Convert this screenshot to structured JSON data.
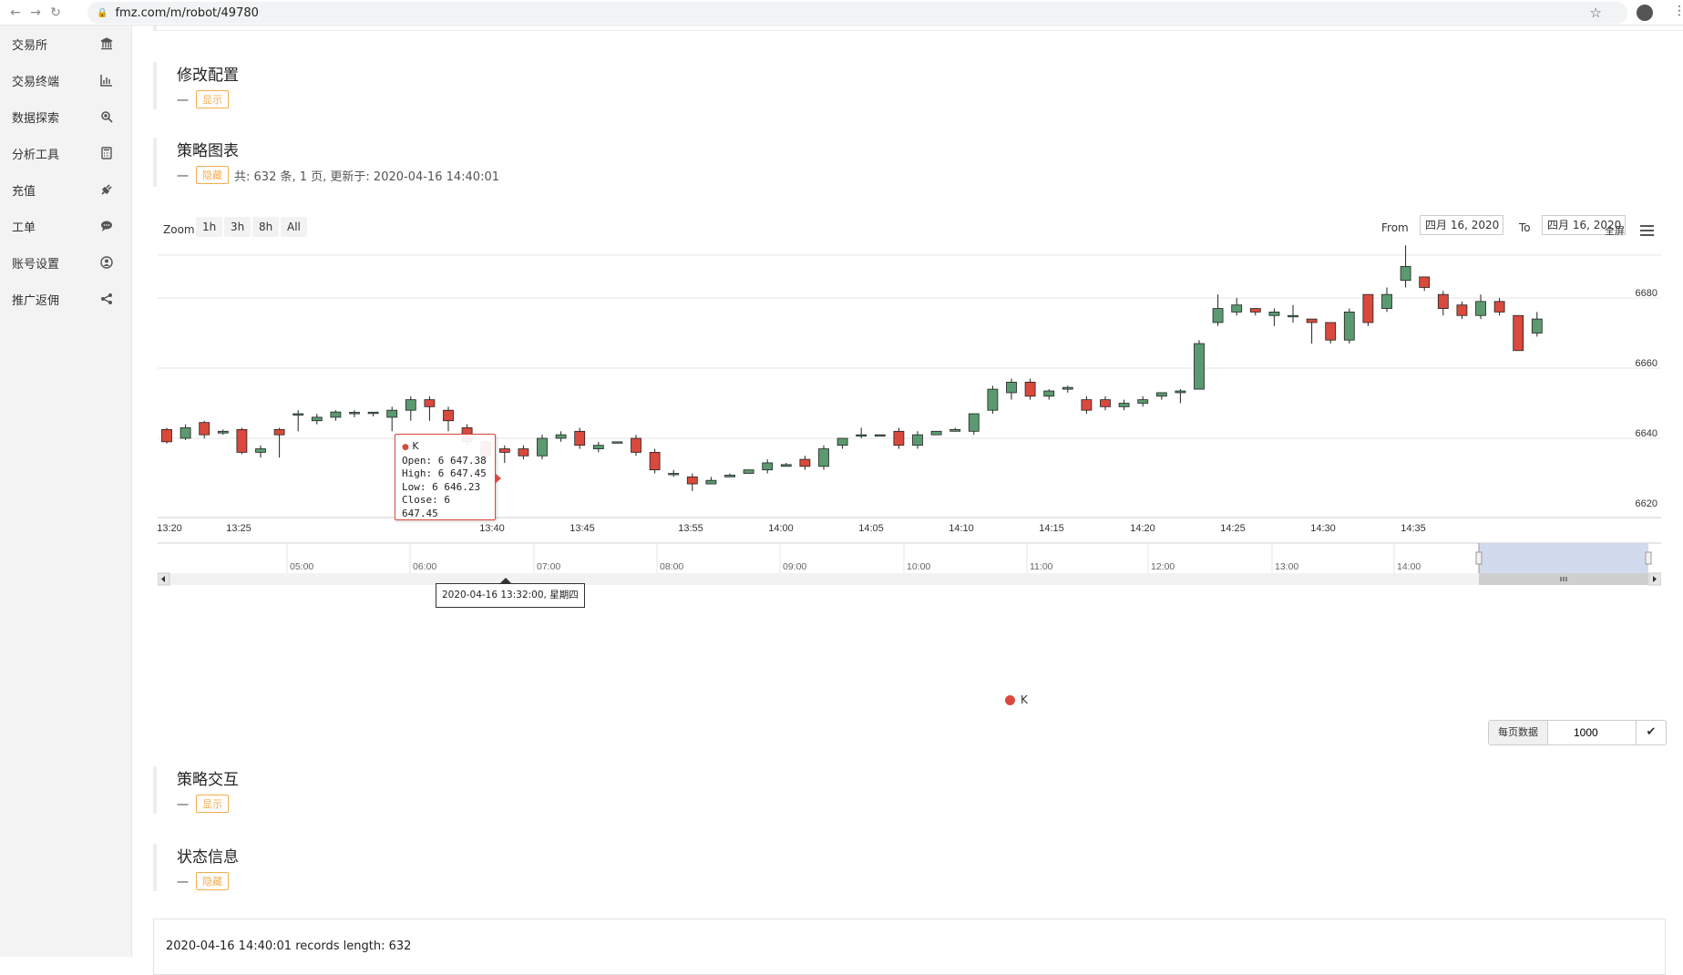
{
  "browser": {
    "url": "fmz.com/m/robot/49780",
    "back_icon": "arrow-left-icon",
    "forward_icon": "arrow-right-icon",
    "reload_icon": "reload-icon"
  },
  "sidebar": {
    "items": [
      {
        "label": "交易所",
        "icon": "bank-icon"
      },
      {
        "label": "交易终端",
        "icon": "bar-chart-icon"
      },
      {
        "label": "数据探索",
        "icon": "search-zoom-icon"
      },
      {
        "label": "分析工具",
        "icon": "calculator-icon"
      },
      {
        "label": "充值",
        "icon": "plug-icon"
      },
      {
        "label": "工单",
        "icon": "comment-icon"
      },
      {
        "label": "账号设置",
        "icon": "user-circle-icon"
      },
      {
        "label": "推广返佣",
        "icon": "share-icon"
      }
    ]
  },
  "sections": {
    "config": {
      "title": "修改配置",
      "dash": "一",
      "toggle": "显示"
    },
    "chart": {
      "title": "策略图表",
      "dash": "一",
      "toggle": "隐藏",
      "summary": "共: 632 条, 1 页, 更新于: 2020-04-16 14:40:01"
    },
    "interact": {
      "title": "策略交互",
      "dash": "一",
      "toggle": "显示"
    },
    "status": {
      "title": "状态信息",
      "dash": "一",
      "toggle": "隐藏"
    }
  },
  "range_selector": {
    "zoom_label": "Zoom",
    "buttons": [
      "1h",
      "3h",
      "8h",
      "All"
    ],
    "from_label": "From",
    "from_value": "四月 16, 2020",
    "to_label": "To",
    "to_value": "四月 16, 2020",
    "fullscreen_label": "全屏"
  },
  "tooltip": {
    "series": "K",
    "open": "Open: 6 647.38",
    "high": "High: 6 647.45",
    "low": "Low: 6 646.23",
    "close": "Close: 6 647.45"
  },
  "crosshair_label": "2020-04-16 13:32:00, 星期四",
  "legend": {
    "label": "K",
    "color": "#d9493c"
  },
  "chart_data": {
    "type": "candlestick",
    "series_name": "K",
    "up_color": "#5b9a70",
    "down_color": "#d9493c",
    "x_tick_labels": [
      "13:20",
      "13:25",
      "13:40",
      "13:45",
      "13:55",
      "14:00",
      "14:05",
      "14:10",
      "14:15",
      "14:20",
      "14:25",
      "14:30",
      "14:35"
    ],
    "y_tick_labels": [
      "6620",
      "6640",
      "6660",
      "6680"
    ],
    "ylim": [
      6620,
      6680
    ],
    "navigator_labels": [
      "05:00",
      "06:00",
      "07:00",
      "08:00",
      "09:00",
      "10:00",
      "11:00",
      "12:00",
      "13:00",
      "14:00"
    ],
    "candles": [
      [
        6642.5,
        6639,
        6643,
        6638.5
      ],
      [
        6640,
        6643,
        6644,
        6639.5
      ],
      [
        6644.5,
        6641,
        6645,
        6640
      ],
      [
        6641.5,
        6642,
        6642.5,
        6641
      ],
      [
        6642.5,
        6636,
        6643,
        6635.5
      ],
      [
        6636,
        6637,
        6638,
        6634.5
      ],
      [
        6642.5,
        6641,
        6643,
        6634.5
      ],
      [
        6647,
        6647,
        6648,
        6642
      ],
      [
        6645,
        6646,
        6647,
        6644
      ],
      [
        6646,
        6647.5,
        6648,
        6645
      ],
      [
        6647,
        6647.4,
        6648,
        6646
      ],
      [
        6647.38,
        6647.45,
        6647.45,
        6646.23
      ],
      [
        6646,
        6648,
        6649,
        6642
      ],
      [
        6648,
        6651,
        6652,
        6645
      ],
      [
        6651,
        6649,
        6652,
        6645
      ],
      [
        6648,
        6645,
        6649,
        6642
      ],
      [
        6643,
        6639,
        6644,
        6638
      ],
      [
        6639,
        6635,
        6640,
        6634
      ],
      [
        6637,
        6636,
        6638,
        6633
      ],
      [
        6637,
        6635,
        6638,
        6634
      ],
      [
        6635,
        6640,
        6641,
        6634
      ],
      [
        6640,
        6641,
        6642,
        6639
      ],
      [
        6642,
        6638,
        6643,
        6637
      ],
      [
        6637,
        6638,
        6639,
        6636
      ],
      [
        6639,
        6639,
        6639,
        6639
      ],
      [
        6640,
        6636,
        6641,
        6635
      ],
      [
        6636,
        6631,
        6637,
        6630
      ],
      [
        6630,
        6630,
        6631,
        6629
      ],
      [
        6629,
        6627,
        6630,
        6625
      ],
      [
        6627,
        6628,
        6629,
        6627
      ],
      [
        6629,
        6629.5,
        6630,
        6629
      ],
      [
        6630,
        6631,
        6631,
        6630
      ],
      [
        6631,
        6633,
        6634,
        6630
      ],
      [
        6632,
        6632.5,
        6633,
        6632
      ],
      [
        6634,
        6632,
        6635,
        6631
      ],
      [
        6632,
        6637,
        6638,
        6631
      ],
      [
        6638,
        6640,
        6640,
        6637
      ],
      [
        6641,
        6641,
        6643,
        6640
      ],
      [
        6641,
        6641,
        6641,
        6641
      ],
      [
        6642,
        6638,
        6643,
        6637
      ],
      [
        6638,
        6641,
        6642,
        6637
      ],
      [
        6641,
        6642,
        6642,
        6641
      ],
      [
        6642,
        6642.5,
        6643,
        6642
      ],
      [
        6642,
        6647,
        6647,
        6641
      ],
      [
        6648,
        6654,
        6655,
        6647
      ],
      [
        6653,
        6656,
        6657,
        6651
      ],
      [
        6656,
        6652,
        6657,
        6651
      ],
      [
        6652,
        6653.5,
        6654,
        6651
      ],
      [
        6654,
        6654.5,
        6655,
        6653
      ],
      [
        6651,
        6648,
        6652,
        6647
      ],
      [
        6651,
        6649,
        6652,
        6648
      ],
      [
        6649,
        6650,
        6651,
        6648
      ],
      [
        6650,
        6651,
        6652,
        6649
      ],
      [
        6652,
        6653,
        6653,
        6651
      ],
      [
        6653,
        6653.5,
        6654,
        6650
      ],
      [
        6654,
        6667,
        6668,
        6654
      ],
      [
        6673,
        6677,
        6681,
        6672
      ],
      [
        6676,
        6678,
        6680,
        6675
      ],
      [
        6677,
        6676,
        6677,
        6675
      ],
      [
        6675,
        6676,
        6677,
        6672
      ],
      [
        6675,
        6675,
        6678,
        6673
      ],
      [
        6674,
        6673,
        6674,
        6667
      ],
      [
        6673,
        6668,
        6673,
        6667
      ],
      [
        6668,
        6676,
        6677,
        6667
      ],
      [
        6681,
        6673,
        6681,
        6672
      ],
      [
        6677,
        6681,
        6683,
        6676
      ],
      [
        6685,
        6689,
        6695,
        6683
      ],
      [
        6686,
        6683,
        6686,
        6682
      ],
      [
        6681,
        6677,
        6682,
        6675
      ],
      [
        6678,
        6675,
        6679,
        6674
      ],
      [
        6675,
        6679,
        6681,
        6674
      ],
      [
        6679,
        6676,
        6680,
        6675
      ],
      [
        6675,
        6665,
        6675,
        6665
      ],
      [
        6670,
        6674,
        6676,
        6669
      ]
    ]
  },
  "per_page": {
    "label": "每页数据",
    "value": "1000",
    "confirm_icon": "check-icon"
  },
  "log": {
    "text": "2020-04-16 14:40:01 records length: 632"
  }
}
